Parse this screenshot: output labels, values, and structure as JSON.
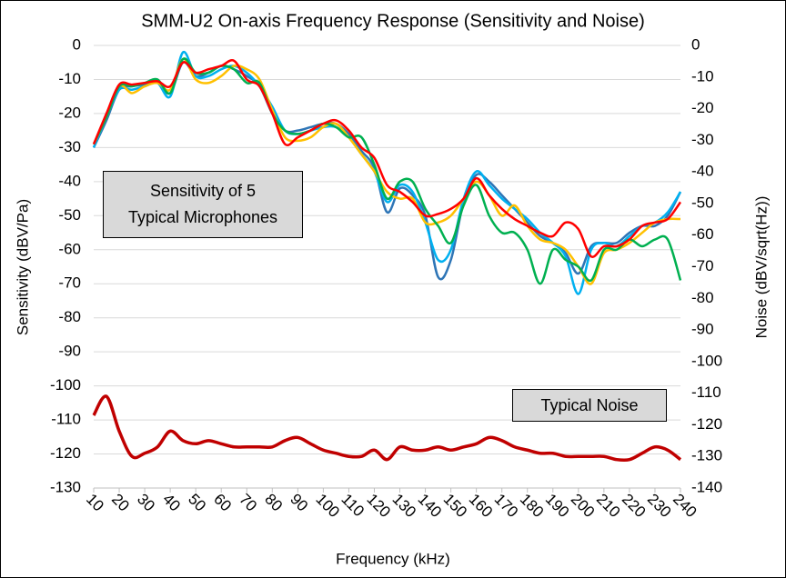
{
  "chart_data": {
    "type": "line",
    "title": "SMM-U2 On-axis Frequency Response (Sensitivity and Noise)",
    "x_label": "Frequency (kHz)",
    "y_label": "Sensitivity (dBV/Pa)",
    "y2_label": "Noise (dBV/sqrt(Hz))",
    "annotations": [
      "Sensitivity of 5\nTypical Microphones",
      "Typical Noise"
    ],
    "x": [
      10,
      15,
      20,
      25,
      30,
      35,
      40,
      45,
      50,
      55,
      60,
      65,
      70,
      75,
      80,
      85,
      90,
      95,
      100,
      105,
      110,
      115,
      120,
      125,
      130,
      135,
      140,
      145,
      150,
      155,
      160,
      165,
      170,
      175,
      180,
      185,
      190,
      195,
      200,
      205,
      210,
      215,
      220,
      225,
      230,
      235,
      240
    ],
    "xlim": [
      10,
      240
    ],
    "xticks": [
      10,
      20,
      30,
      40,
      50,
      60,
      70,
      80,
      90,
      100,
      110,
      120,
      130,
      140,
      150,
      160,
      170,
      180,
      190,
      200,
      210,
      220,
      230,
      240
    ],
    "ylim": [
      -130,
      0
    ],
    "yticks": [
      0,
      -10,
      -20,
      -30,
      -40,
      -50,
      -60,
      -70,
      -80,
      -90,
      -100,
      -110,
      -120,
      -130
    ],
    "y2lim": [
      -140,
      0
    ],
    "y2ticks": [
      0,
      -10,
      -20,
      -30,
      -40,
      -50,
      -60,
      -70,
      -80,
      -90,
      -100,
      -110,
      -120,
      -130,
      -140
    ],
    "grid": true,
    "series": [
      {
        "color": "#2e75b6",
        "values": [
          -30,
          -22,
          -13,
          -12,
          -11.5,
          -11,
          -14,
          -5,
          -9,
          -8,
          -6,
          -7,
          -9,
          -12,
          -20,
          -25,
          -25,
          -24,
          -23,
          -23,
          -26,
          -31,
          -36,
          -49,
          -42,
          -44,
          -50,
          -68,
          -63,
          -46,
          -38,
          -40,
          -44,
          -48,
          -52,
          -56,
          -58,
          -61,
          -67,
          -59,
          -58,
          -58,
          -55,
          -53,
          -53,
          -50,
          -43
        ]
      },
      {
        "color": "#00b0f0",
        "values": [
          -30,
          -21,
          -13,
          -13,
          -12,
          -11,
          -15,
          -2,
          -9,
          -9,
          -7,
          -6,
          -8,
          -12,
          -18,
          -25,
          -26,
          -25,
          -24,
          -24,
          -27,
          -32,
          -37,
          -46,
          -41,
          -43,
          -52,
          -63,
          -60,
          -45,
          -37,
          -41,
          -45,
          -48,
          -51,
          -55,
          -58,
          -62,
          -73,
          -60,
          -58,
          -59,
          -56,
          -53,
          -52,
          -49,
          -43
        ]
      },
      {
        "color": "#ffc000",
        "values": [
          -29,
          -21,
          -12,
          -14,
          -12,
          -11,
          -13,
          -4,
          -10,
          -11,
          -9,
          -6,
          -7,
          -10,
          -19,
          -27,
          -28,
          -27,
          -24,
          -23,
          -27,
          -32,
          -37,
          -43,
          -45,
          -45,
          -52,
          -52,
          -50,
          -45,
          -40,
          -44,
          -50,
          -47,
          -53,
          -57,
          -58,
          -60,
          -65,
          -70,
          -61,
          -60,
          -58,
          -55,
          -52,
          -51,
          -51
        ]
      },
      {
        "color": "#00b050",
        "values": [
          -29,
          -21,
          -12,
          -12,
          -11,
          -10,
          -14,
          -4,
          -8,
          -8,
          -6,
          -7,
          -11,
          -11,
          -20,
          -25,
          -26,
          -25,
          -23,
          -24,
          -27,
          -27,
          -35,
          -45,
          -40,
          -40,
          -48,
          -53,
          -58,
          -47,
          -41,
          -50,
          -55,
          -55,
          -60,
          -70,
          -60,
          -63,
          -65,
          -69,
          -60,
          -60,
          -57,
          -59,
          -57,
          -57,
          -69
        ]
      },
      {
        "color": "#ff0000",
        "values": [
          -29,
          -20,
          -11.5,
          -11.5,
          -11,
          -10.5,
          -12,
          -5,
          -8,
          -7,
          -6,
          -4.5,
          -10,
          -12,
          -20,
          -29,
          -27,
          -25,
          -23,
          -22,
          -25,
          -30,
          -33,
          -41,
          -43,
          -46,
          -50,
          -49.5,
          -48,
          -45,
          -39,
          -44,
          -48,
          -51,
          -53,
          -55,
          -56,
          -52,
          -54,
          -62,
          -59,
          -59,
          -57,
          -53,
          -52,
          -51,
          -46
        ]
      },
      {
        "color": "#c00000",
        "axis": "y2",
        "values": [
          -117,
          -111,
          -122,
          -130,
          -129,
          -127,
          -122,
          -125,
          -126,
          -125,
          -126,
          -127,
          -127,
          -127,
          -127,
          -125,
          -124,
          -126,
          -128,
          -129,
          -130,
          -130,
          -128,
          -131,
          -127,
          -128,
          -128,
          -127,
          -128,
          -127,
          -126,
          -124,
          -125,
          -127,
          -128,
          -129,
          -129,
          -130,
          -130,
          -130,
          -130,
          -131,
          -131,
          -129,
          -127,
          -128,
          -131
        ]
      }
    ]
  }
}
